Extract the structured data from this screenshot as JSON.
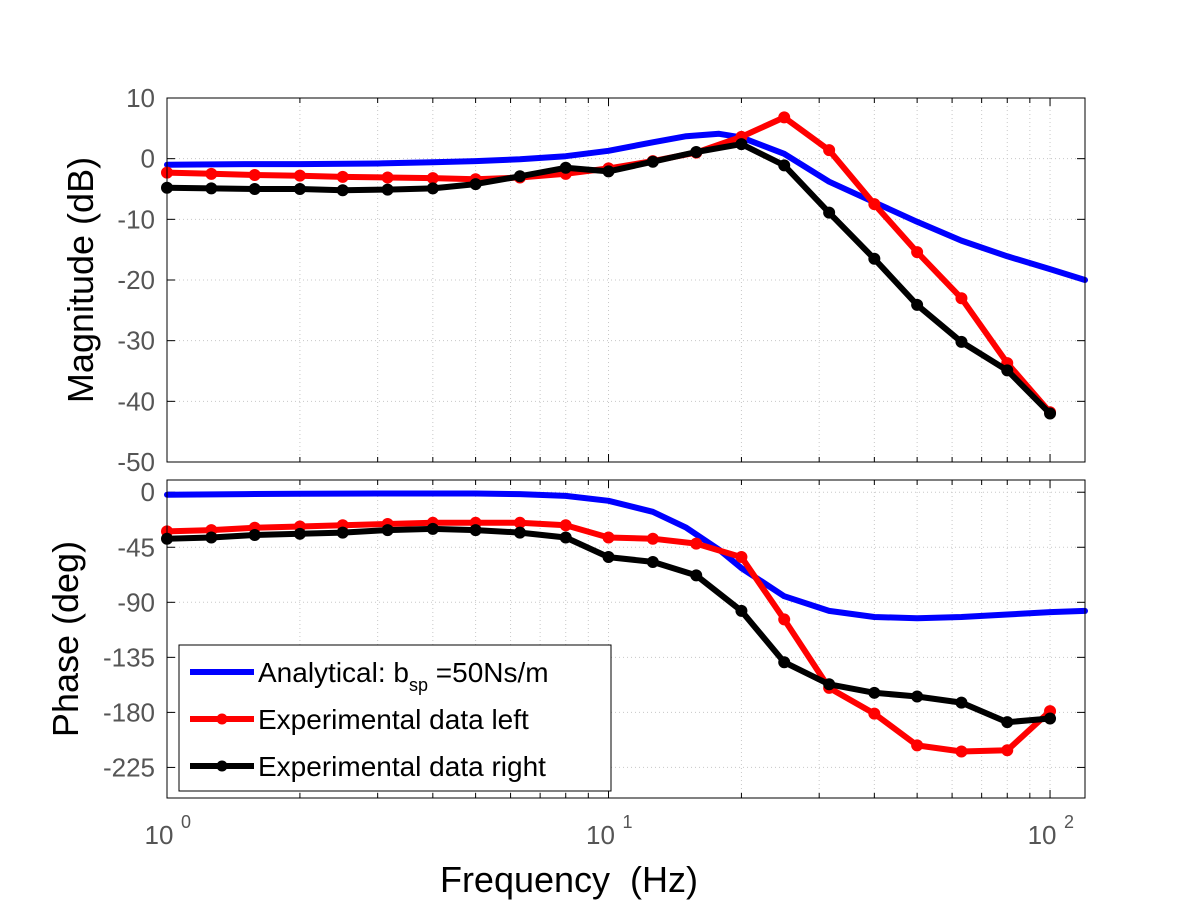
{
  "chart_data": [
    {
      "type": "line",
      "panel": "magnitude",
      "xlabel": "",
      "ylabel": "Magnitude (dB)",
      "xscale": "log",
      "xlim": [
        1,
        120
      ],
      "ylim": [
        -50,
        10
      ],
      "yticks": [
        10,
        0,
        -10,
        -20,
        -30,
        -40,
        -50
      ],
      "yticklabels": [
        "10",
        "0",
        "-10",
        "-20",
        "-30",
        "-40",
        "-50"
      ],
      "grid": true,
      "series": [
        {
          "name": "Analytical: b_sp =50Ns/m",
          "color": "#0000ff",
          "markers": false,
          "x": [
            1,
            1.5,
            2,
            3,
            4,
            5,
            6.3,
            8,
            10,
            12.6,
            15,
            17.8,
            20,
            25,
            31.6,
            40,
            50,
            63,
            80,
            100,
            120
          ],
          "y": [
            -1,
            -0.9,
            -0.9,
            -0.8,
            -0.6,
            -0.4,
            -0.1,
            0.4,
            1.3,
            2.7,
            3.7,
            4.1,
            3.5,
            0.8,
            -3.8,
            -7.2,
            -10.4,
            -13.5,
            -16.1,
            -18.2,
            -20
          ]
        },
        {
          "name": "Experimental data left",
          "color": "#ff0000",
          "markers": true,
          "x": [
            1,
            1.26,
            1.58,
            2,
            2.5,
            3.16,
            4,
            5,
            6.3,
            8,
            10,
            12.6,
            15.8,
            20,
            25,
            31.6,
            40,
            50,
            63,
            80,
            100
          ],
          "y": [
            -2.3,
            -2.5,
            -2.7,
            -2.8,
            -3.0,
            -3.1,
            -3.2,
            -3.4,
            -3.1,
            -2.5,
            -1.6,
            -0.4,
            1.0,
            3.6,
            6.8,
            1.4,
            -7.5,
            -15.4,
            -23.0,
            -33.7,
            -41.8
          ]
        },
        {
          "name": "Experimental data right",
          "color": "#000000",
          "markers": true,
          "x": [
            1,
            1.26,
            1.58,
            2,
            2.5,
            3.16,
            4,
            5,
            6.3,
            8,
            10,
            12.6,
            15.8,
            20,
            25,
            31.6,
            40,
            50,
            63,
            80,
            100
          ],
          "y": [
            -4.8,
            -4.9,
            -5.0,
            -5.0,
            -5.2,
            -5.1,
            -4.9,
            -4.2,
            -2.9,
            -1.5,
            -2.1,
            -0.5,
            1.1,
            2.4,
            -1.1,
            -8.9,
            -16.5,
            -24.1,
            -30.2,
            -34.9,
            -42.0
          ]
        }
      ]
    },
    {
      "type": "line",
      "panel": "phase",
      "xlabel": "Frequency  (Hz)",
      "ylabel": "Phase (deg)",
      "xscale": "log",
      "xlim": [
        1,
        120
      ],
      "ylim": [
        -250,
        10
      ],
      "xticks": [
        1,
        10,
        100
      ],
      "xticklabels": [
        {
          "base": "10",
          "exp": "0"
        },
        {
          "base": "10",
          "exp": "1"
        },
        {
          "base": "10",
          "exp": "2"
        }
      ],
      "yticks": [
        0,
        -45,
        -90,
        -135,
        -180,
        -225
      ],
      "yticklabels": [
        "0",
        "-45",
        "-90",
        "-135",
        "-180",
        "-225"
      ],
      "grid": true,
      "series": [
        {
          "name": "Analytical: b_sp =50Ns/m",
          "color": "#0000ff",
          "markers": false,
          "x": [
            1,
            1.5,
            2,
            3,
            4,
            5,
            6.3,
            8,
            10,
            12.6,
            15,
            17.8,
            20,
            25,
            31.6,
            40,
            50,
            63,
            80,
            100,
            120
          ],
          "y": [
            -2,
            -1.5,
            -1.2,
            -1,
            -1,
            -1,
            -1.5,
            -3,
            -7,
            -16,
            -29,
            -47,
            -62,
            -85,
            -97,
            -102,
            -103,
            -102,
            -100,
            -98,
            -97
          ]
        },
        {
          "name": "Experimental data left",
          "color": "#ff0000",
          "markers": true,
          "x": [
            1,
            1.26,
            1.58,
            2,
            2.5,
            3.16,
            4,
            5,
            6.3,
            8,
            10,
            12.6,
            15.8,
            20,
            25,
            31.6,
            40,
            50,
            63,
            80,
            100
          ],
          "y": [
            -32,
            -31,
            -29,
            -28,
            -27,
            -26,
            -25,
            -25,
            -25,
            -27,
            -37,
            -38,
            -42,
            -53,
            -104,
            -160,
            -181,
            -207,
            -212,
            -211,
            -179
          ]
        },
        {
          "name": "Experimental data right",
          "color": "#000000",
          "markers": true,
          "x": [
            1,
            1.26,
            1.58,
            2,
            2.5,
            3.16,
            4,
            5,
            6.3,
            8,
            10,
            12.6,
            15.8,
            20,
            25,
            31.6,
            40,
            50,
            63,
            80,
            100
          ],
          "y": [
            -38,
            -37,
            -35,
            -34,
            -33,
            -31,
            -30,
            -31,
            -33,
            -37,
            -53,
            -57,
            -68,
            -97,
            -139,
            -157,
            -164,
            -167,
            -172,
            -188,
            -185
          ]
        }
      ]
    }
  ],
  "legend": {
    "placement": "lower-left of phase panel",
    "entries": [
      {
        "color": "#0000ff",
        "markers": false,
        "prefix": "Analytical: b",
        "sub": "sp",
        "suffix": " =50Ns/m"
      },
      {
        "color": "#ff0000",
        "markers": true,
        "prefix": "Experimental data left",
        "sub": "",
        "suffix": ""
      },
      {
        "color": "#000000",
        "markers": true,
        "prefix": "Experimental data right",
        "sub": "",
        "suffix": ""
      }
    ]
  },
  "colors": {
    "grid": "#c8c8c8",
    "axis": "#000000",
    "tick_text": "#555555"
  }
}
